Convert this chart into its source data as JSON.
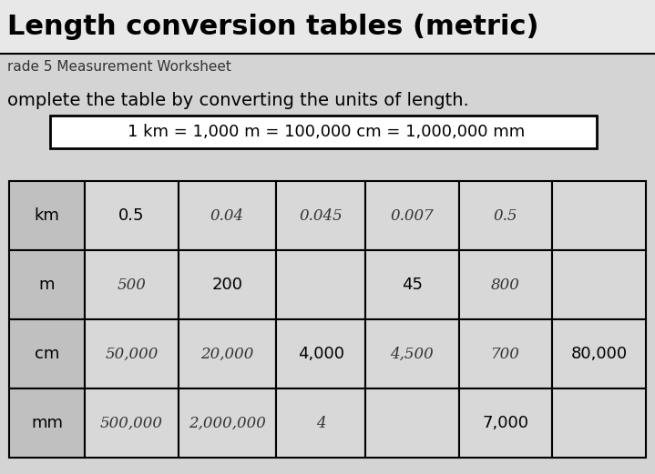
{
  "title": "Length conversion tables (metric)",
  "subtitle": "rade 5 Measurement Worksheet",
  "instruction": "omplete the table by converting the units of length.",
  "formula": "1 km = 1,000 m = 100,000 cm = 1,000,000 mm",
  "bg_color": "#d4d4d4",
  "title_bg": "#e8e8e8",
  "table_header_bg": "#c0c0c0",
  "table_cell_bg": "#d8d8d8",
  "rows": [
    "km",
    "m",
    "cm",
    "mm"
  ],
  "printed_cells": {
    "0,0": "0.5",
    "1,1": "200",
    "1,3": "45",
    "2,2": "4,000",
    "2,5": "80,000",
    "3,4": "7,000"
  },
  "handwritten_cells": {
    "0,1": "0.04",
    "0,2": "0.045",
    "0,3": "0.007",
    "0,4": "0.5",
    "1,0": "500",
    "1,4": "800",
    "2,0": "50,000",
    "2,1": "20,000",
    "2,3": "4,500",
    "2,4": "700",
    "3,0": "500,000",
    "3,1": "2,000,000",
    "3,2": "4"
  },
  "title_fontsize": 22,
  "subtitle_fontsize": 11,
  "instruction_fontsize": 14,
  "formula_fontsize": 13,
  "table_fontsize": 13,
  "handwritten_fontsize": 12
}
